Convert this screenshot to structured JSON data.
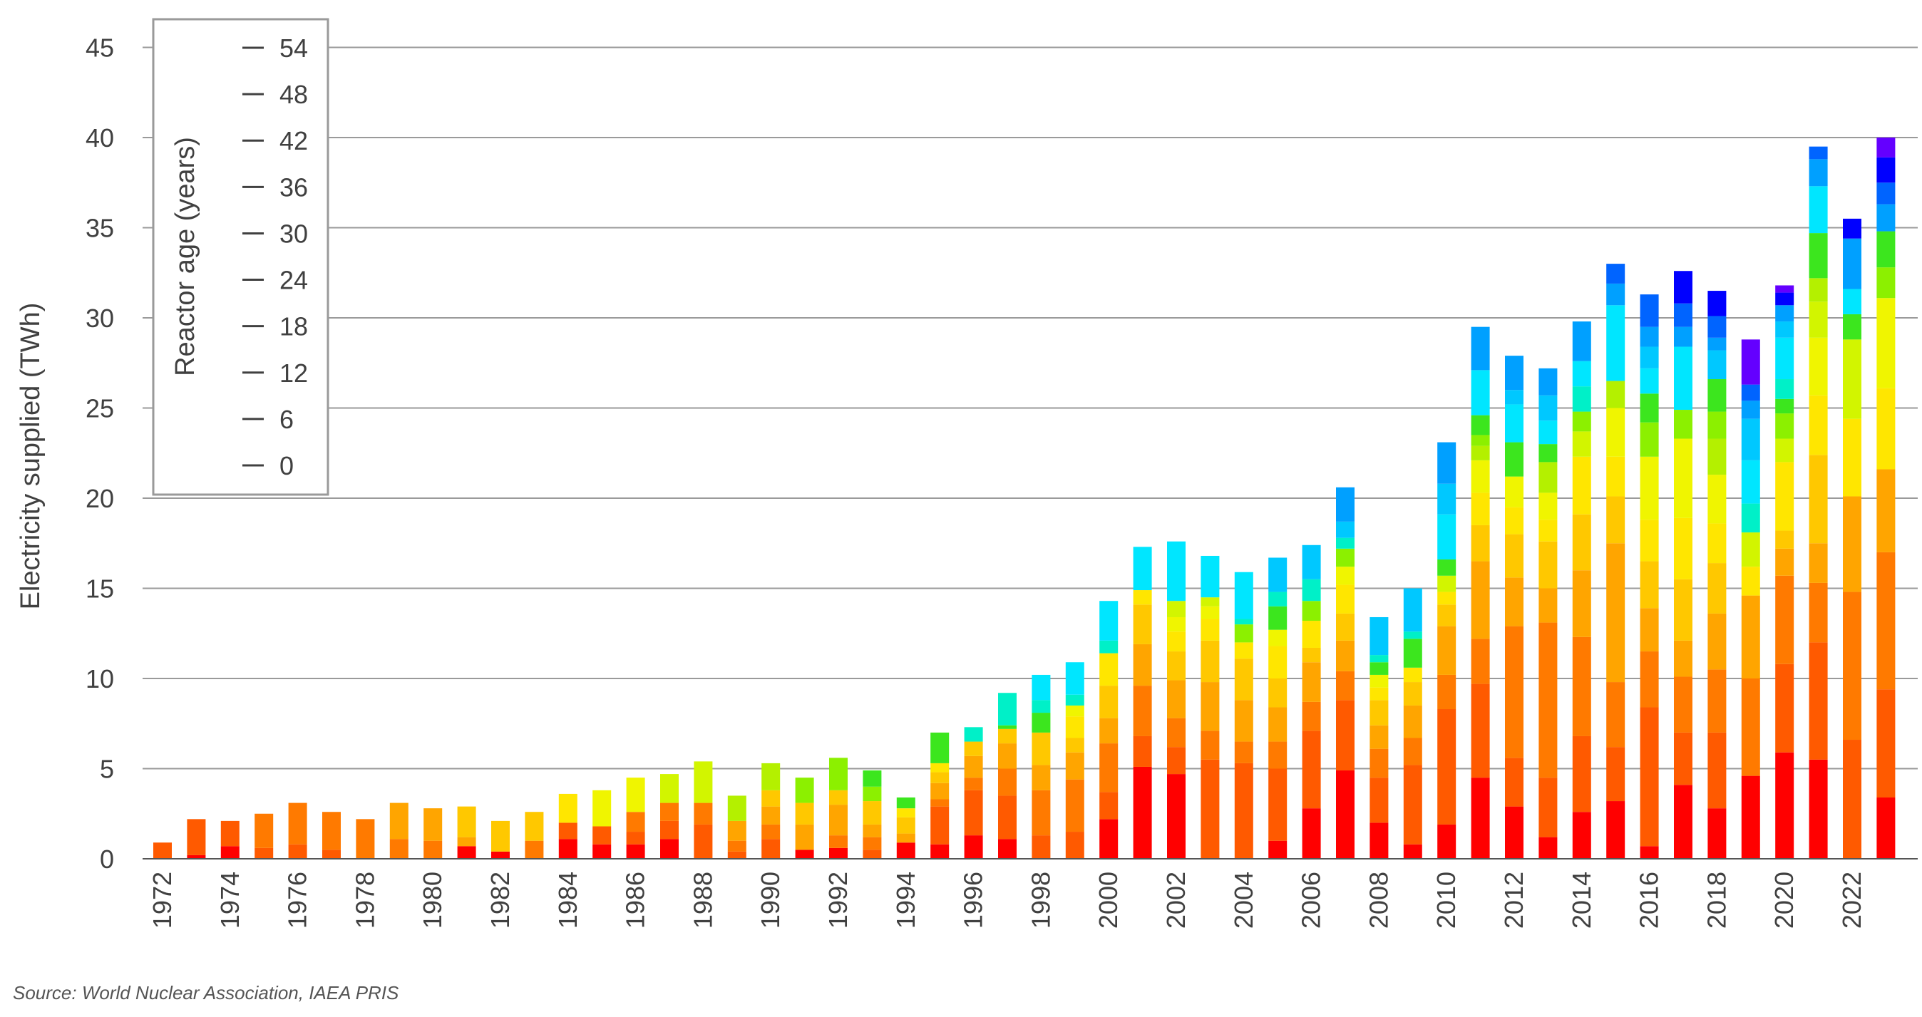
{
  "chart_data": {
    "type": "bar",
    "stacked": true,
    "ylabel": "Electricity supplied (TWh)",
    "ylim": [
      0,
      45
    ],
    "yticks": [
      0,
      5,
      10,
      15,
      20,
      25,
      30,
      35,
      40,
      45
    ],
    "grid": "horizontal",
    "categories": [
      1972,
      1973,
      1974,
      1975,
      1976,
      1977,
      1978,
      1979,
      1980,
      1981,
      1982,
      1983,
      1984,
      1985,
      1986,
      1987,
      1988,
      1989,
      1990,
      1991,
      1992,
      1993,
      1994,
      1995,
      1996,
      1997,
      1998,
      1999,
      2000,
      2001,
      2002,
      2003,
      2004,
      2005,
      2006,
      2007,
      2008,
      2009,
      2010,
      2011,
      2012,
      2013,
      2014,
      2015,
      2016,
      2017,
      2018,
      2019,
      2020,
      2021,
      2022,
      2023
    ],
    "xtick_labels": [
      "1972",
      "1974",
      "1976",
      "1978",
      "1980",
      "1982",
      "1984",
      "1986",
      "1988",
      "1990",
      "1992",
      "1994",
      "1996",
      "1998",
      "2000",
      "2002",
      "2004",
      "2006",
      "2008",
      "2010",
      "2012",
      "2014",
      "2016",
      "2018",
      "2020",
      "2022"
    ],
    "colorbar": {
      "label": "Reactor age (years)",
      "tick_labels": [
        "0",
        "6",
        "12",
        "18",
        "24",
        "30",
        "36",
        "42",
        "48",
        "54"
      ],
      "legend_placement": "top-left"
    },
    "age_bins": [
      0,
      3,
      6,
      9,
      12,
      15,
      18,
      21,
      24,
      27,
      30,
      33,
      36,
      39,
      42,
      45,
      48,
      51,
      54
    ],
    "bin_colors": [
      "#ff0000",
      "#ff5a00",
      "#ff7a00",
      "#ffa500",
      "#ffc800",
      "#ffe600",
      "#f0f500",
      "#d2f500",
      "#b4f000",
      "#8cf000",
      "#3ce61e",
      "#00f0c8",
      "#00e6ff",
      "#00c8ff",
      "#00a0ff",
      "#0064ff",
      "#0000ff",
      "#6400ff",
      "#a000ff"
    ],
    "series_values": [
      [
        0.0,
        0.9
      ],
      [
        0.2,
        2.0
      ],
      [
        0.7,
        1.4
      ],
      [
        0.0,
        0.6,
        1.9
      ],
      [
        0.0,
        0.8,
        2.3
      ],
      [
        0.0,
        0.5,
        2.1
      ],
      [
        0.0,
        0.0,
        2.2
      ],
      [
        0.0,
        0.0,
        1.1,
        2.0
      ],
      [
        0.0,
        0.0,
        1.0,
        1.8
      ],
      [
        0.7,
        0.0,
        0.0,
        0.5,
        1.7
      ],
      [
        0.4,
        0.0,
        0.0,
        0.0,
        1.7
      ],
      [
        0.0,
        0.0,
        1.0,
        0.0,
        1.6
      ],
      [
        1.1,
        0.9,
        0.0,
        0.0,
        0.0,
        1.6
      ],
      [
        0.8,
        1.0,
        0.0,
        0.0,
        0.0,
        0.0,
        2.0
      ],
      [
        0.8,
        0.7,
        1.1,
        0.0,
        0.0,
        0.0,
        1.9
      ],
      [
        1.1,
        1.0,
        1.0,
        0.0,
        0.0,
        0.0,
        0.0,
        1.6
      ],
      [
        0.0,
        1.9,
        1.2,
        0.0,
        0.0,
        0.0,
        0.0,
        2.3
      ],
      [
        0.0,
        0.4,
        0.6,
        1.1,
        0.0,
        0.0,
        0.0,
        0.0,
        1.4
      ],
      [
        0.0,
        1.1,
        0.8,
        1.0,
        0.9,
        0.0,
        0.0,
        0.0,
        1.5
      ],
      [
        0.5,
        0.0,
        0.0,
        1.4,
        1.2,
        0.0,
        0.0,
        0.0,
        0.0,
        1.4
      ],
      [
        0.6,
        0.0,
        0.7,
        1.7,
        0.8,
        0.0,
        0.0,
        0.0,
        0.0,
        1.8
      ],
      [
        0.0,
        0.5,
        0.7,
        0.7,
        1.3,
        0.0,
        0.0,
        0.0,
        0.0,
        0.8,
        0.9
      ],
      [
        0.9,
        0.0,
        0.0,
        0.5,
        0.9,
        0.5,
        0.0,
        0.0,
        0.0,
        0.0,
        0.6
      ],
      [
        0.8,
        2.1,
        0.4,
        0.9,
        0.6,
        0.5,
        0.0,
        0.0,
        0.0,
        0.0,
        1.7
      ],
      [
        1.3,
        2.5,
        0.7,
        1.2,
        0.8,
        0.0,
        0.0,
        0.0,
        0.0,
        0.0,
        0.0,
        0.8
      ],
      [
        1.1,
        2.4,
        1.5,
        1.4,
        0.8,
        0.0,
        0.0,
        0.0,
        0.0,
        0.0,
        0.2,
        1.8
      ],
      [
        0.0,
        1.3,
        2.5,
        1.4,
        1.8,
        0.0,
        0.0,
        0.0,
        0.0,
        0.0,
        1.1,
        0.7,
        1.4
      ],
      [
        0.0,
        1.5,
        2.9,
        1.5,
        0.8,
        1.2,
        0.6,
        0.0,
        0.0,
        0.0,
        0.0,
        0.6,
        1.8
      ],
      [
        2.2,
        1.5,
        2.7,
        1.4,
        1.8,
        1.8,
        0.0,
        0.0,
        0.0,
        0.0,
        0.0,
        0.7,
        2.2
      ],
      [
        5.1,
        1.7,
        2.8,
        2.3,
        2.2,
        0.8,
        0.0,
        0.0,
        0.0,
        0.0,
        0.0,
        0.0,
        2.4
      ],
      [
        4.7,
        1.5,
        1.6,
        2.1,
        1.6,
        1.1,
        0.8,
        0.9,
        0.0,
        0.0,
        0.0,
        0.0,
        3.3
      ],
      [
        0.0,
        5.5,
        1.6,
        2.7,
        2.3,
        1.2,
        0.7,
        0.5,
        0.0,
        0.0,
        0.0,
        0.0,
        2.3
      ],
      [
        0.0,
        5.3,
        1.2,
        2.3,
        2.3,
        0.9,
        0.0,
        0.0,
        0.0,
        1.0,
        0.0,
        0.3,
        2.6
      ],
      [
        1.0,
        4.0,
        1.5,
        1.9,
        1.6,
        1.8,
        0.9,
        0.0,
        0.0,
        0.0,
        1.3,
        0.8,
        0.0,
        1.9
      ],
      [
        2.8,
        4.3,
        1.6,
        2.2,
        0.8,
        1.5,
        0.0,
        0.0,
        0.0,
        1.1,
        0.0,
        1.2,
        0.0,
        1.9
      ],
      [
        4.9,
        3.9,
        1.6,
        1.7,
        1.5,
        1.6,
        1.0,
        0.0,
        0.0,
        1.0,
        0.0,
        0.6,
        0.0,
        0.9,
        1.9
      ],
      [
        2.0,
        2.5,
        1.6,
        1.3,
        1.4,
        0.7,
        0.7,
        0.0,
        0.0,
        0.0,
        0.7,
        0.4,
        0.0,
        2.1
      ],
      [
        0.8,
        4.4,
        1.5,
        1.8,
        1.3,
        0.8,
        0.0,
        0.0,
        0.0,
        0.0,
        1.6,
        0.4,
        0.0,
        2.4
      ],
      [
        1.9,
        6.4,
        1.9,
        2.7,
        1.2,
        0.7,
        0.0,
        0.9,
        0.0,
        0.0,
        0.9,
        0.0,
        2.5,
        1.7,
        2.3
      ],
      [
        4.5,
        5.2,
        2.5,
        4.3,
        2.0,
        1.8,
        1.8,
        0.0,
        0.8,
        0.6,
        1.1,
        0.0,
        2.5,
        0.0,
        2.4
      ],
      [
        2.9,
        2.7,
        7.3,
        2.7,
        2.4,
        1.5,
        1.7,
        0.0,
        0.0,
        0.0,
        1.9,
        0.0,
        2.1,
        0.8,
        1.9
      ],
      [
        1.2,
        3.3,
        8.6,
        1.9,
        2.6,
        1.2,
        1.5,
        0.0,
        1.7,
        0.0,
        1.0,
        0.0,
        1.3,
        1.4,
        1.5
      ],
      [
        2.6,
        4.2,
        5.5,
        3.7,
        3.1,
        3.2,
        0.0,
        1.4,
        0.0,
        1.1,
        0.0,
        1.4,
        1.4,
        0.0,
        2.2
      ],
      [
        3.2,
        3.0,
        3.6,
        7.7,
        2.6,
        2.2,
        2.7,
        0.0,
        1.5,
        0.0,
        0.0,
        0.0,
        4.2,
        0.0,
        1.2,
        1.1
      ],
      [
        0.7,
        7.7,
        3.1,
        2.4,
        2.6,
        2.3,
        3.5,
        0.0,
        0.0,
        1.9,
        1.6,
        0.0,
        1.4,
        1.2,
        1.1,
        1.8
      ],
      [
        4.1,
        2.9,
        3.1,
        2.0,
        3.4,
        3.4,
        4.4,
        0.0,
        0.0,
        1.6,
        0.0,
        0.0,
        3.5,
        0.0,
        1.1,
        1.3,
        1.8
      ],
      [
        2.8,
        4.2,
        3.5,
        3.1,
        2.8,
        2.2,
        2.7,
        0.0,
        2.0,
        1.5,
        1.8,
        0.0,
        0.0,
        1.6,
        0.7,
        1.2,
        1.4
      ],
      [
        4.6,
        0.0,
        5.4,
        4.6,
        0.0,
        1.6,
        0.0,
        1.9,
        0.0,
        0.0,
        0.0,
        1.6,
        2.4,
        2.3,
        1.0,
        0.9,
        0.0,
        2.5
      ],
      [
        5.9,
        4.9,
        4.9,
        1.5,
        1.0,
        3.8,
        0.0,
        1.3,
        0.0,
        1.4,
        0.8,
        1.1,
        2.3,
        0.9,
        0.9,
        0.0,
        0.7,
        0.4
      ],
      [
        5.5,
        6.5,
        3.3,
        2.2,
        4.9,
        3.3,
        3.2,
        2.0,
        1.3,
        0.0,
        2.5,
        0.0,
        2.6,
        0.0,
        1.5,
        0.7,
        0.0
      ],
      [
        0.0,
        6.6,
        8.2,
        5.3,
        0.0,
        4.3,
        0.0,
        4.4,
        0.0,
        0.0,
        1.4,
        0.0,
        1.4,
        0.0,
        2.8,
        0.0,
        1.1
      ],
      [
        3.4,
        6.0,
        7.6,
        4.6,
        0.0,
        4.5,
        5.0,
        0.0,
        0.0,
        1.7,
        2.0,
        0.0,
        0.0,
        0.0,
        1.5,
        1.2,
        1.4,
        1.1
      ]
    ],
    "source_note": "Source: World Nuclear Association, IAEA PRIS"
  }
}
